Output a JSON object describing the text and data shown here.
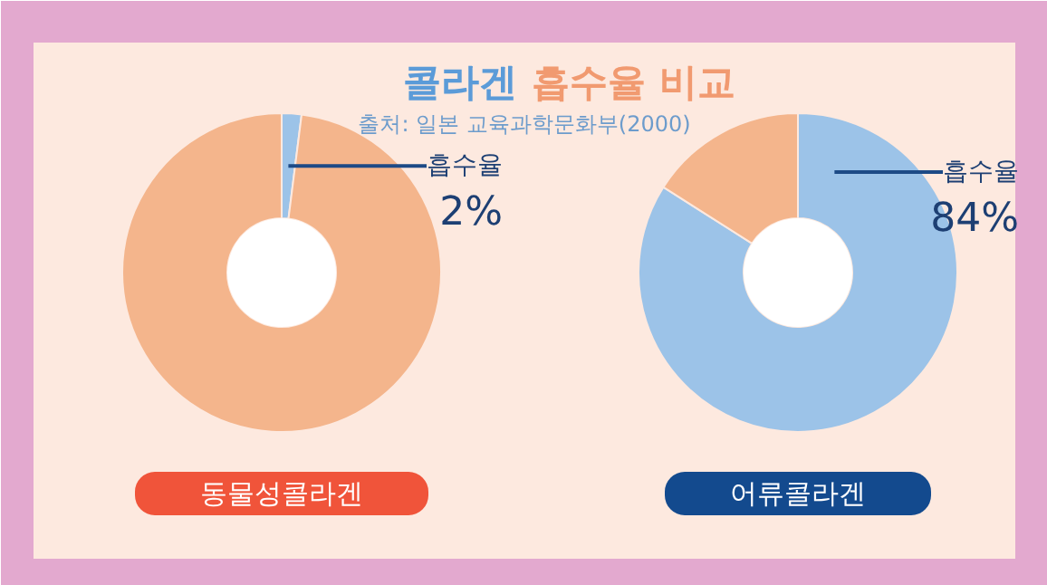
{
  "chart_data": [
    {
      "type": "donut",
      "title": "콜라겐 흡수율 비교",
      "subtitle": "출처: 일본 교육과학문화부(2000)",
      "xlabel": "동물성콜라겐",
      "categories": [
        "흡수율",
        null
      ],
      "values": [
        2,
        98
      ],
      "colors": [
        "#9cc3e8",
        "#f4b58c"
      ],
      "value_labels": [
        "2%",
        null
      ]
    },
    {
      "type": "donut",
      "xlabel": "어류콜라겐",
      "categories": [
        "흡수율",
        null
      ],
      "values": [
        84,
        16
      ],
      "colors": [
        "#9cc3e8",
        "#f4b58c"
      ],
      "value_labels": [
        "84%",
        null
      ]
    }
  ]
}
